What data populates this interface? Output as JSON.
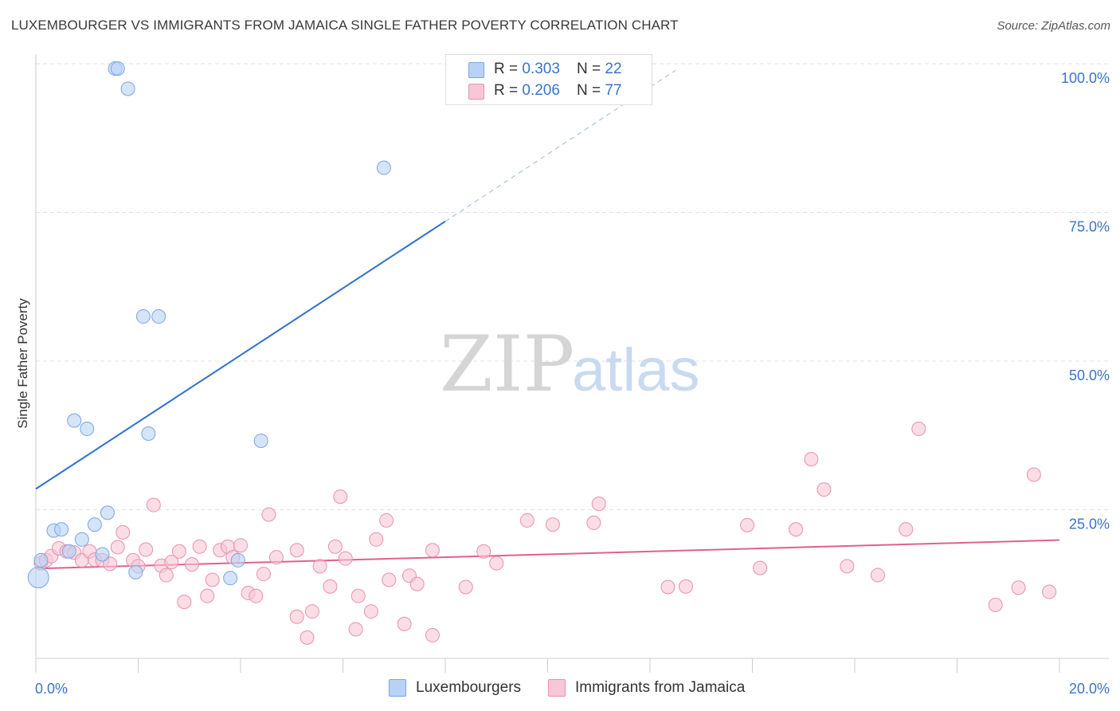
{
  "title": "LUXEMBOURGER VS IMMIGRANTS FROM JAMAICA SINGLE FATHER POVERTY CORRELATION CHART",
  "source": "Source: ZipAtlas.com",
  "watermark": {
    "part1": "ZIP",
    "part2": "atlas"
  },
  "colors": {
    "blue_fill": "#b8d2f5",
    "blue_stroke": "#7aa6e0",
    "blue_line": "#2f6fd0",
    "pink_fill": "#f8c6d6",
    "pink_stroke": "#e891ae",
    "pink_line": "#e0608e",
    "axis_label": "#3a74c8"
  },
  "legend_top": {
    "rows": [
      {
        "r_label": "R = ",
        "r_value": "0.303",
        "n_label": "N = ",
        "n_value": "22",
        "color": "#b8d2f5"
      },
      {
        "r_label": "R = ",
        "r_value": "0.206",
        "n_label": "N = ",
        "n_value": "77",
        "color": "#f8c6d6"
      }
    ]
  },
  "legend_bottom": [
    "Luxembourgers",
    "Immigrants from Jamaica"
  ],
  "chart_data": {
    "type": "scatter",
    "title": "LUXEMBOURGER VS IMMIGRANTS FROM JAMAICA SINGLE FATHER POVERTY CORRELATION CHART",
    "xlabel": "",
    "ylabel": "Single Father Poverty",
    "xlim": [
      0,
      20
    ],
    "ylim": [
      0,
      100
    ],
    "x_tick_labels": [
      "0.0%",
      "20.0%"
    ],
    "y_tick_labels": [
      "25.0%",
      "50.0%",
      "75.0%",
      "100.0%"
    ],
    "y_ticks": [
      25,
      50,
      75,
      100
    ],
    "series": [
      {
        "name": "Luxembourgers",
        "r": 0.303,
        "n": 22,
        "trend": {
          "x0": 0,
          "y0": 28.5,
          "x1": 8.0,
          "y1": 73.5,
          "dashed_to_x": 12.5,
          "dashed_to_y": 98.9
        },
        "points": [
          [
            0.05,
            13.6
          ],
          [
            0.1,
            16.5
          ],
          [
            0.35,
            21.5
          ],
          [
            0.5,
            21.7
          ],
          [
            0.65,
            18.0
          ],
          [
            0.75,
            40.0
          ],
          [
            0.9,
            20.0
          ],
          [
            1.0,
            38.6
          ],
          [
            1.15,
            22.5
          ],
          [
            1.3,
            17.5
          ],
          [
            1.4,
            24.5
          ],
          [
            1.55,
            99.2
          ],
          [
            1.6,
            99.2
          ],
          [
            1.8,
            95.8
          ],
          [
            1.95,
            14.5
          ],
          [
            2.1,
            57.5
          ],
          [
            2.2,
            37.8
          ],
          [
            2.4,
            57.5
          ],
          [
            3.8,
            13.5
          ],
          [
            3.95,
            16.5
          ],
          [
            4.4,
            36.6
          ],
          [
            6.8,
            82.5
          ]
        ]
      },
      {
        "name": "Immigrants from Jamaica",
        "r": 0.206,
        "n": 77,
        "trend": {
          "x0": 0,
          "y0": 15.1,
          "x1": 20,
          "y1": 19.9
        },
        "points": [
          [
            0.1,
            16.0
          ],
          [
            0.2,
            16.5
          ],
          [
            0.3,
            17.2
          ],
          [
            0.45,
            18.5
          ],
          [
            0.6,
            18.0
          ],
          [
            0.75,
            17.8
          ],
          [
            0.9,
            16.5
          ],
          [
            1.05,
            18.0
          ],
          [
            1.15,
            16.6
          ],
          [
            1.3,
            16.5
          ],
          [
            1.45,
            15.9
          ],
          [
            1.6,
            18.7
          ],
          [
            1.7,
            21.2
          ],
          [
            1.9,
            16.5
          ],
          [
            2.0,
            15.5
          ],
          [
            2.15,
            18.3
          ],
          [
            2.3,
            25.8
          ],
          [
            2.45,
            15.6
          ],
          [
            2.55,
            14.0
          ],
          [
            2.65,
            16.2
          ],
          [
            2.8,
            18.0
          ],
          [
            2.9,
            9.5
          ],
          [
            3.05,
            15.8
          ],
          [
            3.2,
            18.8
          ],
          [
            3.35,
            10.5
          ],
          [
            3.45,
            13.2
          ],
          [
            3.6,
            18.2
          ],
          [
            3.75,
            18.8
          ],
          [
            3.85,
            17.0
          ],
          [
            4.0,
            19.0
          ],
          [
            4.15,
            11.0
          ],
          [
            4.3,
            10.5
          ],
          [
            4.45,
            14.2
          ],
          [
            4.55,
            24.2
          ],
          [
            4.7,
            17.0
          ],
          [
            5.1,
            18.2
          ],
          [
            5.1,
            7.0
          ],
          [
            5.3,
            3.5
          ],
          [
            5.4,
            7.9
          ],
          [
            5.55,
            15.5
          ],
          [
            5.75,
            12.1
          ],
          [
            5.85,
            18.8
          ],
          [
            5.95,
            27.2
          ],
          [
            6.05,
            16.8
          ],
          [
            6.25,
            4.9
          ],
          [
            6.3,
            10.5
          ],
          [
            6.55,
            7.9
          ],
          [
            6.65,
            20.0
          ],
          [
            6.85,
            23.2
          ],
          [
            6.9,
            13.2
          ],
          [
            7.2,
            5.8
          ],
          [
            7.3,
            13.9
          ],
          [
            7.45,
            12.5
          ],
          [
            7.75,
            18.2
          ],
          [
            7.75,
            3.9
          ],
          [
            8.4,
            12.0
          ],
          [
            8.75,
            18.0
          ],
          [
            9.0,
            16.0
          ],
          [
            9.6,
            23.2
          ],
          [
            10.1,
            22.5
          ],
          [
            10.9,
            22.8
          ],
          [
            11.0,
            26.0
          ],
          [
            12.35,
            12.0
          ],
          [
            12.7,
            12.1
          ],
          [
            13.9,
            22.4
          ],
          [
            14.15,
            15.2
          ],
          [
            14.85,
            21.7
          ],
          [
            15.15,
            33.5
          ],
          [
            15.4,
            28.4
          ],
          [
            15.85,
            15.5
          ],
          [
            16.45,
            14.0
          ],
          [
            17.0,
            21.7
          ],
          [
            17.25,
            38.6
          ],
          [
            18.75,
            9.0
          ],
          [
            19.2,
            11.9
          ],
          [
            19.5,
            30.9
          ],
          [
            19.8,
            11.2
          ]
        ]
      }
    ]
  }
}
